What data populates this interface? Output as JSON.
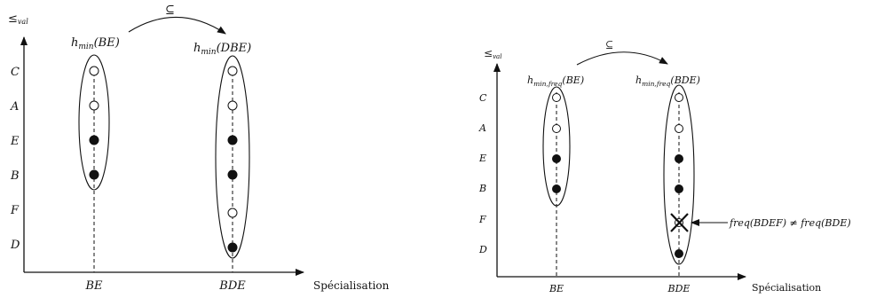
{
  "diagram_left": {
    "y_axis_label": "≤val",
    "x_axis_label": "Spécialisation",
    "y_levels": [
      "C",
      "A",
      "E",
      "B",
      "F",
      "D"
    ],
    "x_levels": [
      "BE",
      "BDE"
    ],
    "subset_symbol": "⊆",
    "set_labels": [
      "hmin(BE)",
      "hmin(DBE)"
    ],
    "columns": [
      {
        "label": "BE",
        "points": [
          {
            "level": "C",
            "filled": false
          },
          {
            "level": "A",
            "filled": false
          },
          {
            "level": "E",
            "filled": true
          },
          {
            "level": "B",
            "filled": true
          }
        ]
      },
      {
        "label": "BDE",
        "points": [
          {
            "level": "C",
            "filled": false
          },
          {
            "level": "A",
            "filled": false
          },
          {
            "level": "E",
            "filled": true
          },
          {
            "level": "B",
            "filled": true
          },
          {
            "level": "F",
            "filled": false
          },
          {
            "level": "D",
            "filled": true
          }
        ]
      }
    ]
  },
  "diagram_right": {
    "y_axis_label": "≤val",
    "x_axis_label": "Spécialisation",
    "y_levels": [
      "C",
      "A",
      "E",
      "B",
      "F",
      "D"
    ],
    "x_levels": [
      "BE",
      "BDE"
    ],
    "subset_symbol": "⊆",
    "set_labels": [
      "hmin,freq(BE)",
      "hmin,freq(BDE)"
    ],
    "annotation": "freq(BDEF) ≠ freq(BDE)",
    "columns": [
      {
        "label": "BE",
        "points": [
          {
            "level": "C",
            "filled": false
          },
          {
            "level": "A",
            "filled": false
          },
          {
            "level": "E",
            "filled": true
          },
          {
            "level": "B",
            "filled": true
          }
        ]
      },
      {
        "label": "BDE",
        "points": [
          {
            "level": "C",
            "filled": false
          },
          {
            "level": "A",
            "filled": false
          },
          {
            "level": "E",
            "filled": true
          },
          {
            "level": "B",
            "filled": true
          },
          {
            "level": "F",
            "filled": false,
            "crossed": true
          },
          {
            "level": "D",
            "filled": true
          }
        ]
      }
    ]
  }
}
